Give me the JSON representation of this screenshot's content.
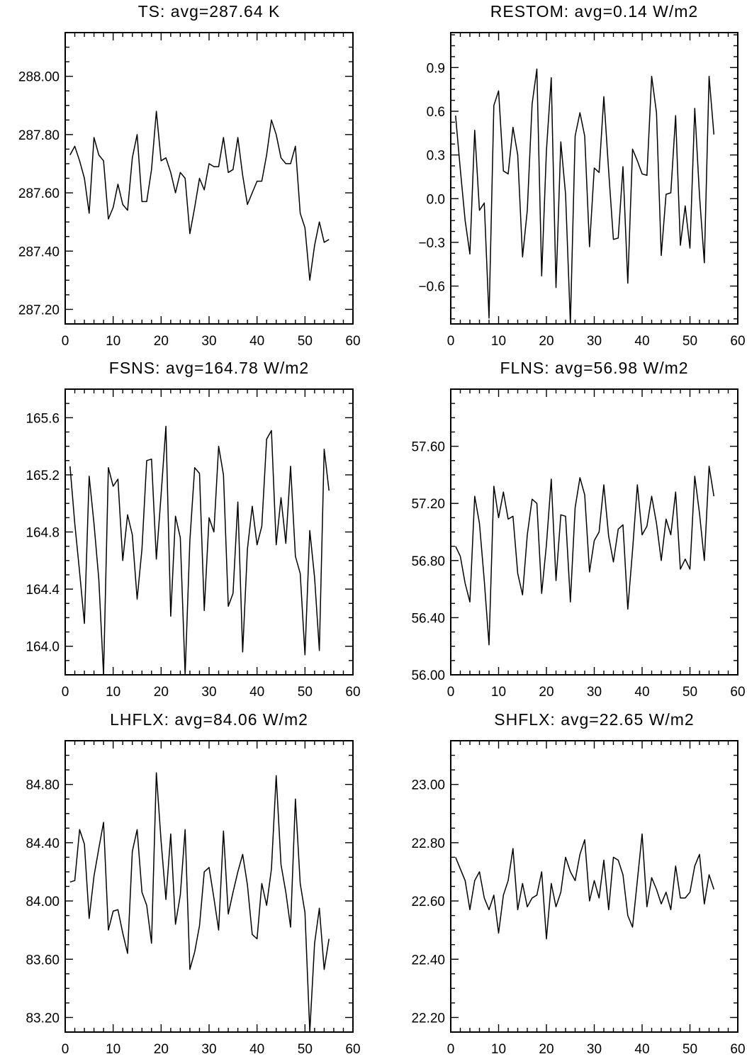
{
  "chart_data": [
    {
      "type": "line",
      "title": "TS: avg=287.64 K",
      "xlim": [
        0,
        60
      ],
      "ylim": [
        287.15,
        288.15
      ],
      "xticks": [
        0,
        10,
        20,
        30,
        40,
        50,
        60
      ],
      "xtick_labels": [
        "0",
        "10",
        "20",
        "30",
        "40",
        "50",
        "60"
      ],
      "yticks": [
        287.2,
        287.4,
        287.6,
        287.8,
        288.0
      ],
      "ytick_labels": [
        "287.20",
        "287.40",
        "287.60",
        "287.80",
        "288.00"
      ],
      "x": [
        1,
        2,
        3,
        4,
        5,
        6,
        7,
        8,
        9,
        10,
        11,
        12,
        13,
        14,
        15,
        16,
        17,
        18,
        19,
        20,
        21,
        22,
        23,
        24,
        25,
        26,
        27,
        28,
        29,
        30,
        31,
        32,
        33,
        34,
        35,
        36,
        37,
        38,
        39,
        40,
        41,
        42,
        43,
        44,
        45,
        46,
        47,
        48,
        49,
        50,
        51,
        52,
        53,
        54,
        55
      ],
      "y": [
        287.73,
        287.76,
        287.71,
        287.65,
        287.53,
        287.79,
        287.73,
        287.71,
        287.51,
        287.55,
        287.63,
        287.56,
        287.54,
        287.72,
        287.8,
        287.57,
        287.57,
        287.68,
        287.88,
        287.71,
        287.72,
        287.67,
        287.6,
        287.67,
        287.65,
        287.46,
        287.55,
        287.65,
        287.61,
        287.7,
        287.69,
        287.69,
        287.79,
        287.67,
        287.68,
        287.79,
        287.66,
        287.56,
        287.6,
        287.64,
        287.64,
        287.73,
        287.85,
        287.8,
        287.72,
        287.7,
        287.7,
        287.76,
        287.53,
        287.48,
        287.3,
        287.42,
        287.5,
        287.43,
        287.44
      ]
    },
    {
      "type": "line",
      "title": "RESTOM: avg=0.14 W/m2",
      "xlim": [
        0,
        60
      ],
      "ylim": [
        -0.86,
        1.14
      ],
      "xticks": [
        0,
        10,
        20,
        30,
        40,
        50,
        60
      ],
      "xtick_labels": [
        "0",
        "10",
        "20",
        "30",
        "40",
        "50",
        "60"
      ],
      "yticks": [
        -0.6,
        -0.3,
        0.0,
        0.3,
        0.6,
        0.9
      ],
      "ytick_labels": [
        "-0.6",
        "-0.3",
        "0.0",
        "0.3",
        "0.6",
        "0.9"
      ],
      "x": [
        1,
        2,
        3,
        4,
        5,
        6,
        7,
        8,
        9,
        10,
        11,
        12,
        13,
        14,
        15,
        16,
        17,
        18,
        19,
        20,
        21,
        22,
        23,
        24,
        25,
        26,
        27,
        28,
        29,
        30,
        31,
        32,
        33,
        34,
        35,
        36,
        37,
        38,
        39,
        40,
        41,
        42,
        43,
        44,
        45,
        46,
        47,
        48,
        49,
        50,
        51,
        52,
        53,
        54,
        55
      ],
      "y": [
        0.57,
        0.2,
        -0.15,
        -0.38,
        0.47,
        -0.08,
        -0.03,
        -0.82,
        0.64,
        0.74,
        0.19,
        0.17,
        0.49,
        0.3,
        -0.4,
        -0.08,
        0.65,
        0.89,
        -0.53,
        0.33,
        0.83,
        -0.61,
        0.39,
        0.03,
        -0.86,
        0.43,
        0.59,
        0.43,
        -0.33,
        0.21,
        0.18,
        0.7,
        0.19,
        -0.28,
        -0.27,
        0.22,
        -0.58,
        0.34,
        0.26,
        0.17,
        0.16,
        0.84,
        0.59,
        -0.39,
        0.03,
        0.04,
        0.57,
        -0.32,
        -0.05,
        -0.34,
        0.62,
        0.02,
        -0.44,
        0.84,
        0.44
      ]
    },
    {
      "type": "line",
      "title": "FSNS: avg=164.78 W/m2",
      "xlim": [
        0,
        60
      ],
      "ylim": [
        163.8,
        165.8
      ],
      "xticks": [
        0,
        10,
        20,
        30,
        40,
        50,
        60
      ],
      "xtick_labels": [
        "0",
        "10",
        "20",
        "30",
        "40",
        "50",
        "60"
      ],
      "yticks": [
        164.0,
        164.4,
        164.8,
        165.2,
        165.6
      ],
      "ytick_labels": [
        "164.0",
        "164.4",
        "164.8",
        "165.2",
        "165.6"
      ],
      "x": [
        1,
        2,
        3,
        4,
        5,
        6,
        7,
        8,
        9,
        10,
        11,
        12,
        13,
        14,
        15,
        16,
        17,
        18,
        19,
        20,
        21,
        22,
        23,
        24,
        25,
        26,
        27,
        28,
        29,
        30,
        31,
        32,
        33,
        34,
        35,
        36,
        37,
        38,
        39,
        40,
        41,
        42,
        43,
        44,
        45,
        46,
        47,
        48,
        49,
        50,
        51,
        52,
        53,
        54,
        55
      ],
      "y": [
        165.26,
        164.86,
        164.52,
        164.16,
        165.19,
        164.86,
        164.47,
        163.8,
        165.25,
        165.12,
        165.17,
        164.6,
        164.92,
        164.78,
        164.33,
        164.68,
        165.3,
        165.31,
        164.61,
        165.06,
        165.54,
        164.21,
        164.91,
        164.76,
        163.8,
        164.74,
        165.25,
        165.21,
        164.25,
        164.9,
        164.8,
        165.4,
        165.2,
        164.28,
        164.37,
        165.01,
        163.96,
        164.68,
        164.98,
        164.71,
        164.84,
        165.45,
        165.51,
        164.71,
        165.04,
        164.72,
        165.26,
        164.63,
        164.51,
        163.94,
        164.81,
        164.48,
        163.97,
        165.38,
        165.09
      ]
    },
    {
      "type": "line",
      "title": "FLNS: avg=56.98 W/m2",
      "xlim": [
        0,
        60
      ],
      "ylim": [
        56.0,
        58.0
      ],
      "xticks": [
        0,
        10,
        20,
        30,
        40,
        50,
        60
      ],
      "xtick_labels": [
        "0",
        "10",
        "20",
        "30",
        "40",
        "50",
        "60"
      ],
      "yticks": [
        56.0,
        56.4,
        56.8,
        57.2,
        57.6
      ],
      "ytick_labels": [
        "56.00",
        "56.40",
        "56.80",
        "57.20",
        "57.60"
      ],
      "x": [
        1,
        2,
        3,
        4,
        5,
        6,
        7,
        8,
        9,
        10,
        11,
        12,
        13,
        14,
        15,
        16,
        17,
        18,
        19,
        20,
        21,
        22,
        23,
        24,
        25,
        26,
        27,
        28,
        29,
        30,
        31,
        32,
        33,
        34,
        35,
        36,
        37,
        38,
        39,
        40,
        41,
        42,
        43,
        44,
        45,
        46,
        47,
        48,
        49,
        50,
        51,
        52,
        53,
        54,
        55
      ],
      "y": [
        56.9,
        56.83,
        56.64,
        56.51,
        57.25,
        57.06,
        56.66,
        56.21,
        57.32,
        57.1,
        57.28,
        57.09,
        57.11,
        56.71,
        56.56,
        56.98,
        57.23,
        57.2,
        56.57,
        56.91,
        57.37,
        56.66,
        57.12,
        57.11,
        56.51,
        57.17,
        57.38,
        57.26,
        56.72,
        56.94,
        57.0,
        57.33,
        56.97,
        56.79,
        57.02,
        57.05,
        56.46,
        56.87,
        57.33,
        56.98,
        57.04,
        57.25,
        57.06,
        56.8,
        57.09,
        56.98,
        57.28,
        56.74,
        56.81,
        56.74,
        57.39,
        57.13,
        56.8,
        57.46,
        57.25
      ]
    },
    {
      "type": "line",
      "title": "LHFLX: avg=84.06 W/m2",
      "xlim": [
        0,
        60
      ],
      "ylim": [
        83.1,
        85.1
      ],
      "xticks": [
        0,
        10,
        20,
        30,
        40,
        50,
        60
      ],
      "xtick_labels": [
        "0",
        "10",
        "20",
        "30",
        "40",
        "50",
        "60"
      ],
      "yticks": [
        83.2,
        83.6,
        84.0,
        84.4,
        84.8
      ],
      "ytick_labels": [
        "83.20",
        "83.60",
        "84.00",
        "84.40",
        "84.80"
      ],
      "x": [
        1,
        2,
        3,
        4,
        5,
        6,
        7,
        8,
        9,
        10,
        11,
        12,
        13,
        14,
        15,
        16,
        17,
        18,
        19,
        20,
        21,
        22,
        23,
        24,
        25,
        26,
        27,
        28,
        29,
        30,
        31,
        32,
        33,
        34,
        35,
        36,
        37,
        38,
        39,
        40,
        41,
        42,
        43,
        44,
        45,
        46,
        47,
        48,
        49,
        50,
        51,
        52,
        53,
        54,
        55
      ],
      "y": [
        84.13,
        84.14,
        84.49,
        84.39,
        83.88,
        84.17,
        84.36,
        84.54,
        83.8,
        83.93,
        83.94,
        83.78,
        83.64,
        84.34,
        84.49,
        84.06,
        83.97,
        83.71,
        84.88,
        84.41,
        84.01,
        84.46,
        83.84,
        84.04,
        84.49,
        83.53,
        83.65,
        83.83,
        84.2,
        84.23,
        84.02,
        83.8,
        84.48,
        83.91,
        84.06,
        84.2,
        84.32,
        84.11,
        83.77,
        83.74,
        84.12,
        83.97,
        84.22,
        84.86,
        84.25,
        84.06,
        83.82,
        84.7,
        84.12,
        83.92,
        83.1,
        83.71,
        83.95,
        83.53,
        83.74
      ]
    },
    {
      "type": "line",
      "title": "SHFLX: avg=22.65 W/m2",
      "xlim": [
        0,
        60
      ],
      "ylim": [
        22.15,
        23.15
      ],
      "xticks": [
        0,
        10,
        20,
        30,
        40,
        50,
        60
      ],
      "xtick_labels": [
        "0",
        "10",
        "20",
        "30",
        "40",
        "50",
        "60"
      ],
      "yticks": [
        22.2,
        22.4,
        22.6,
        22.8,
        23.0
      ],
      "ytick_labels": [
        "22.20",
        "22.40",
        "22.60",
        "22.80",
        "23.00"
      ],
      "x": [
        1,
        2,
        3,
        4,
        5,
        6,
        7,
        8,
        9,
        10,
        11,
        12,
        13,
        14,
        15,
        16,
        17,
        18,
        19,
        20,
        21,
        22,
        23,
        24,
        25,
        26,
        27,
        28,
        29,
        30,
        31,
        32,
        33,
        34,
        35,
        36,
        37,
        38,
        39,
        40,
        41,
        42,
        43,
        44,
        45,
        46,
        47,
        48,
        49,
        50,
        51,
        52,
        53,
        54,
        55
      ],
      "y": [
        22.75,
        22.71,
        22.67,
        22.57,
        22.67,
        22.7,
        22.61,
        22.57,
        22.62,
        22.49,
        22.62,
        22.67,
        22.78,
        22.57,
        22.66,
        22.58,
        22.61,
        22.62,
        22.7,
        22.47,
        22.66,
        22.58,
        22.63,
        22.75,
        22.7,
        22.67,
        22.76,
        22.81,
        22.6,
        22.67,
        22.61,
        22.74,
        22.57,
        22.75,
        22.74,
        22.69,
        22.55,
        22.51,
        22.67,
        22.83,
        22.58,
        22.68,
        22.64,
        22.59,
        22.63,
        22.57,
        22.72,
        22.61,
        22.61,
        22.63,
        22.72,
        22.76,
        22.59,
        22.69,
        22.64
      ]
    }
  ]
}
